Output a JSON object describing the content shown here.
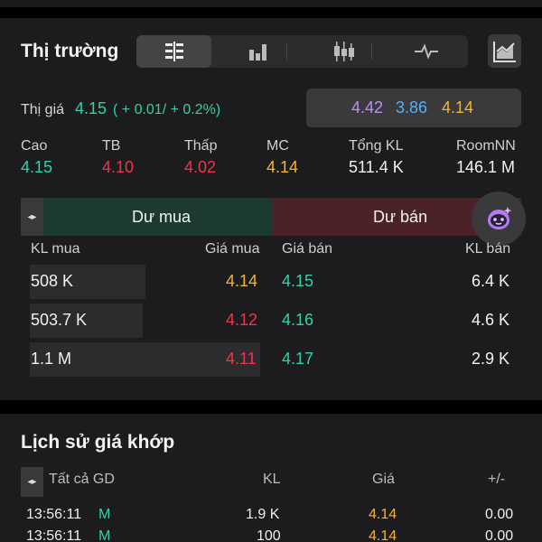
{
  "market": {
    "title": "Thị trường",
    "thigia": {
      "label": "Thị giá",
      "value": "4.15",
      "change": "( + 0.01/ + 0.2%)"
    },
    "prices": {
      "ceiling": "4.42",
      "floor": "3.86",
      "reference": "4.14"
    },
    "stats": [
      {
        "label": "Cao",
        "value": "4.15"
      },
      {
        "label": "TB",
        "value": "4.10"
      },
      {
        "label": "Thấp",
        "value": "4.02"
      },
      {
        "label": "MC",
        "value": "4.14"
      },
      {
        "label": "Tổng KL",
        "value": "511.4 K"
      },
      {
        "label": "RoomNN",
        "value": "146.1 M"
      }
    ],
    "order_book": {
      "buy_header": "Dư mua",
      "sell_header": "Dư bán",
      "columns": {
        "buy_vol": "KL mua",
        "buy_price": "Giá mua",
        "sell_price": "Giá bán",
        "sell_vol": "KL bán"
      },
      "rows": [
        {
          "buy_vol": "508 K",
          "buy_fill": 0.5,
          "buy_price": "4.14",
          "sell_price": "4.15",
          "sell_vol": "6.4 K"
        },
        {
          "buy_vol": "503.7 K",
          "buy_fill": 0.49,
          "buy_price": "4.12",
          "sell_price": "4.16",
          "sell_vol": "4.6 K"
        },
        {
          "buy_vol": "1.1 M",
          "buy_fill": 1.0,
          "buy_price": "4.11",
          "sell_price": "4.17",
          "sell_vol": "2.9 K"
        }
      ]
    }
  },
  "history": {
    "title": "Lịch sử giá khớp",
    "columns": {
      "filter": "Tất cả GD",
      "vol": "KL",
      "price": "Giá",
      "change": "+/-"
    },
    "rows": [
      {
        "time": "13:56:11",
        "side": "M",
        "vol": "1.9 K",
        "price": "4.14",
        "change": "0.00"
      },
      {
        "time": "13:56:11",
        "side": "M",
        "vol": "100",
        "price": "4.14",
        "change": "0.00"
      }
    ]
  },
  "colors": {
    "green": "#31d4a0",
    "red": "#f0354a",
    "yellow": "#f5b332",
    "purple": "#c08cf5",
    "blue": "#55b1f5",
    "white": "#f2f2f2"
  },
  "icons": {
    "tabs": [
      "orderbook-icon",
      "bar-chart-icon",
      "candlestick-icon",
      "line-chart-icon"
    ],
    "chart_button": "area-chart-icon",
    "assistant": "bot-icon"
  }
}
